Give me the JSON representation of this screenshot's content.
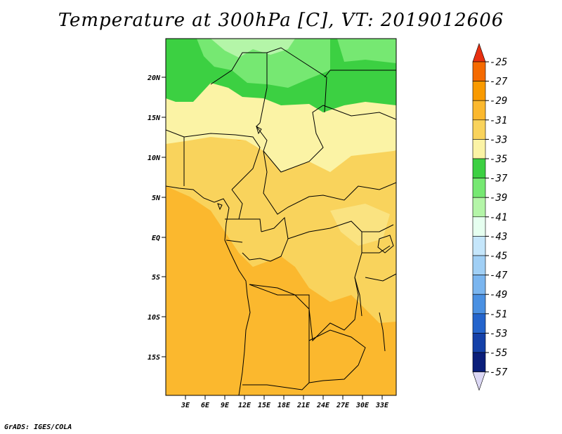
{
  "title": "Temperature at 300hPa [C], VT: 2019012606",
  "footer": "GrADS: IGES/COLA",
  "map": {
    "lat_labels": [
      "20N",
      "15N",
      "10N",
      "5N",
      "EQ",
      "5S",
      "10S",
      "15S"
    ],
    "lon_labels": [
      "3E",
      "6E",
      "9E",
      "12E",
      "15E",
      "18E",
      "21E",
      "24E",
      "27E",
      "30E",
      "33E"
    ]
  },
  "colorbar": {
    "labels": [
      "-25",
      "-27",
      "-29",
      "-31",
      "-33",
      "-35",
      "-37",
      "-39",
      "-41",
      "-43",
      "-45",
      "-47",
      "-49",
      "-51",
      "-53",
      "-55",
      "-57"
    ],
    "colors": [
      "#e03c1e",
      "#f56a00",
      "#f99a00",
      "#fbb82e",
      "#f9d35c",
      "#fbf3a5",
      "#3cd042",
      "#76e872",
      "#b4f5a8",
      "#e6fff0",
      "#c5e6fb",
      "#a0cff5",
      "#7ab5ef",
      "#4a90e2",
      "#2464cc",
      "#1440a8",
      "#0a1e7a",
      "#140a50"
    ],
    "tip_top": "#e83010",
    "tip_bottom": "#dcd8f5"
  },
  "colors": {
    "green_dark": "#3cd042",
    "green_mid": "#76e872",
    "green_light": "#b4f5a8",
    "yellow_light": "#fbf3a5",
    "yellow_mid": "#f9d35c",
    "orange_light": "#fbb82e"
  }
}
